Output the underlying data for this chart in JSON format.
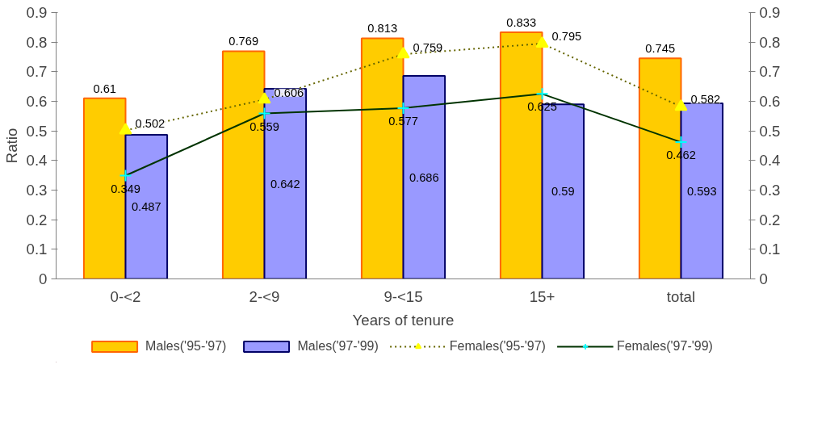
{
  "chart_data": {
    "type": "bar",
    "xlabel": "Years of tenure",
    "ylabel": "Ratio",
    "categories": [
      "0-<2",
      "2-<9",
      "9-<15",
      "15+",
      "total"
    ],
    "series": [
      {
        "name": "Males('95-'97)",
        "color": "#ffcc00",
        "values": [
          0.61,
          0.769,
          0.813,
          0.833,
          0.745
        ]
      },
      {
        "name": "Males('97-'99)",
        "color": "#9999ff",
        "values": [
          0.487,
          0.642,
          0.686,
          0.59,
          0.593
        ]
      },
      {
        "name": "Females('95-'97)",
        "type": "line",
        "color": "#666600",
        "marker": "triangle",
        "line_style": "dotted",
        "values": [
          0.502,
          0.606,
          0.759,
          0.795,
          0.582
        ]
      },
      {
        "name": "Females('97-'99)",
        "type": "line",
        "color": "#003300",
        "marker": "cross",
        "line_style": "solid",
        "values": [
          0.349,
          0.559,
          0.577,
          0.625,
          0.462
        ]
      }
    ],
    "ylim": [
      0,
      0.9
    ],
    "yticks": [
      0,
      0.1,
      0.2,
      0.3,
      0.4,
      0.5,
      0.6,
      0.7,
      0.8,
      0.9
    ],
    "y2lim": [
      0,
      0.9
    ],
    "y2ticks": [
      0,
      0.1,
      0.2,
      0.3,
      0.4,
      0.5,
      0.6,
      0.7,
      0.8,
      0.9
    ],
    "grid": false,
    "legend": "bottom",
    "data_labels": true
  }
}
